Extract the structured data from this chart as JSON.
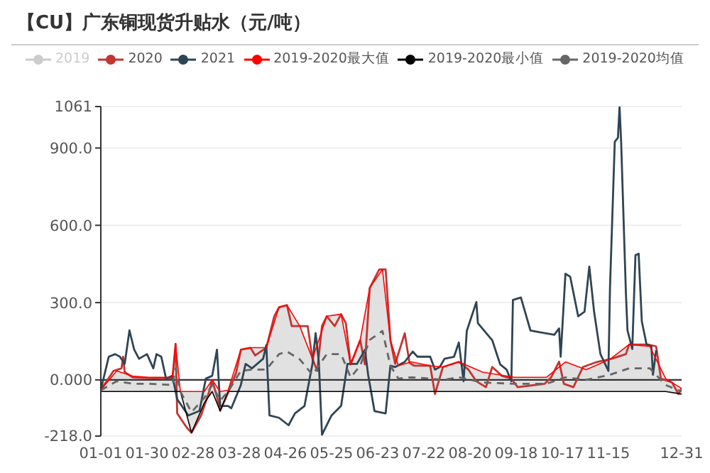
{
  "chart_data": {
    "type": "line",
    "title": "【CU】广东铜现货升贴水（元/吨）",
    "xlim": [
      "--01-01",
      "--12-31"
    ],
    "xticks": [
      {
        "value": "--01-01",
        "label": "01-01"
      },
      {
        "value": "--01-30",
        "label": "01-30"
      },
      {
        "value": "--02-28",
        "label": "02-28"
      },
      {
        "value": "--03-28",
        "label": "03-28"
      },
      {
        "value": "--04-26",
        "label": "04-26"
      },
      {
        "value": "--05-25",
        "label": "05-25"
      },
      {
        "value": "--06-23",
        "label": "06-23"
      },
      {
        "value": "--07-22",
        "label": "07-22"
      },
      {
        "value": "--08-20",
        "label": "08-20"
      },
      {
        "value": "--09-18",
        "label": "09-18"
      },
      {
        "value": "--10-17",
        "label": "10-17"
      },
      {
        "value": "--11-15",
        "label": "11-15"
      },
      {
        "value": "--12-31",
        "label": "12-31"
      }
    ],
    "ylim": [
      -218,
      1061
    ],
    "yticks": [
      {
        "value": -218,
        "label": "-218.0"
      },
      {
        "value": 0,
        "label": "0.000"
      },
      {
        "value": 300,
        "label": "300.0"
      },
      {
        "value": 600,
        "label": "600.0"
      },
      {
        "value": 900,
        "label": "900.0"
      },
      1061
    ],
    "grid": "y",
    "legend": "top",
    "marker": "none",
    "line_style": "solid",
    "ref_lines": [
      {
        "axis": "y",
        "value": 0,
        "color": "#333333"
      }
    ],
    "series": [
      {
        "name": "2019",
        "color": "#cccccc"
      },
      {
        "name": "2020",
        "color": "#c23531",
        "x": [
          "--01-01",
          "--01-09",
          "--01-14",
          "--01-15",
          "--01-16",
          "--01-21",
          "--02-08",
          "--02-15",
          "--02-17",
          "--02-18",
          "--02-24",
          "--02-27",
          "--03-04",
          "--03-09",
          "--03-11",
          "--03-14",
          "--03-16",
          "--03-21",
          "--03-26",
          "--03-29",
          "--04-04",
          "--04-07",
          "--04-14",
          "--04-19",
          "--04-22",
          "--04-27",
          "--04-30",
          "--05-10",
          "--05-13",
          "--05-16",
          "--05-19",
          "--05-22",
          "--05-27",
          "--05-31",
          "--06-03",
          "--06-06",
          "--06-12",
          "--06-15",
          "--06-18",
          "--06-24",
          "--06-28",
          "--07-01",
          "--07-04",
          "--07-10",
          "--07-13",
          "--07-16",
          "--07-26",
          "--07-29",
          "--08-03",
          "--08-13",
          "--08-19",
          "--08-24",
          "--08-30",
          "--09-03",
          "--09-09",
          "--09-15",
          "--09-19",
          "--10-06",
          "--10-10",
          "--10-15",
          "--10-18",
          "--10-24",
          "--10-30",
          "--11-08",
          "--11-17",
          "--11-26",
          "--11-28",
          "--12-10",
          "--12-15",
          "--12-18",
          "--12-25",
          "--12-29",
          "--12-31"
        ],
        "values": [
          -38,
          35,
          45,
          90,
          30,
          10,
          5,
          5,
          140,
          -130,
          -185,
          -205,
          -138,
          -48,
          0,
          -66,
          -120,
          -50,
          27,
          117,
          125,
          95,
          125,
          247,
          282,
          290,
          209,
          209,
          82,
          35,
          209,
          247,
          209,
          255,
          220,
          60,
          154,
          60,
          357,
          429,
          429,
          154,
          62,
          181,
          66,
          55,
          55,
          -55,
          50,
          70,
          40,
          -5,
          -28,
          50,
          16,
          5,
          -28,
          -15,
          10,
          71,
          -15,
          -28,
          50,
          70,
          82,
          100,
          137,
          137,
          130,
          5,
          -10,
          -55,
          -33
        ]
      },
      {
        "name": "2021",
        "color": "#2f4554",
        "x": [
          "--01-01",
          "--01-06",
          "--01-10",
          "--01-13",
          "--01-16",
          "--01-19",
          "--01-22",
          "--01-25",
          "--01-30",
          "--02-03",
          "--02-05",
          "--02-08",
          "--02-11",
          "--02-15",
          "--02-18",
          "--02-23",
          "--02-25",
          "--03-03",
          "--03-07",
          "--03-11",
          "--03-14",
          "--03-16",
          "--03-21",
          "--03-23",
          "--03-29",
          "--04-01",
          "--04-05",
          "--04-12",
          "--04-14",
          "--04-16",
          "--04-22",
          "--04-28",
          "--05-02",
          "--05-08",
          "--05-13",
          "--05-15",
          "--05-17",
          "--05-19",
          "--05-25",
          "--05-31",
          "--06-04",
          "--06-10",
          "--06-15",
          "--06-17",
          "--06-21",
          "--06-28",
          "--07-01",
          "--07-04",
          "--07-10",
          "--07-15",
          "--07-18",
          "--07-26",
          "--07-29",
          "--08-01",
          "--08-04",
          "--08-10",
          "--08-13",
          "--08-16",
          "--08-18",
          "--08-24",
          "--08-25",
          "--09-03",
          "--09-08",
          "--09-12",
          "--09-15",
          "--09-16",
          "--09-21",
          "--09-27",
          "--10-03",
          "--10-12",
          "--10-15",
          "--10-16",
          "--10-19",
          "--10-22",
          "--10-27",
          "--10-31",
          "--11-03",
          "--11-06",
          "--11-10",
          "--11-15",
          "--11-16",
          "--11-19",
          "--11-21",
          "--11-22",
          "--11-23",
          "--11-26",
          "--11-27",
          "--11-30",
          "--12-02",
          "--12-04",
          "--12-06",
          "--12-09",
          "--12-12",
          "--12-13",
          "--12-15"
        ],
        "values": [
          -38,
          90,
          100,
          90,
          62,
          192,
          117,
          82,
          100,
          45,
          100,
          90,
          5,
          16,
          -75,
          -120,
          -138,
          -120,
          5,
          16,
          117,
          -101,
          -101,
          -110,
          -20,
          62,
          45,
          82,
          135,
          -138,
          -147,
          -176,
          -130,
          -101,
          62,
          181,
          71,
          -213,
          -138,
          -101,
          62,
          62,
          117,
          20,
          -121,
          -130,
          55,
          50,
          70,
          110,
          90,
          90,
          40,
          50,
          82,
          90,
          145,
          -5,
          190,
          302,
          220,
          154,
          60,
          40,
          -5,
          310,
          320,
          192,
          185,
          175,
          200,
          90,
          412,
          400,
          247,
          265,
          440,
          265,
          100,
          35,
          357,
          924,
          940,
          1061,
          924,
          337,
          192,
          120,
          484,
          490,
          227,
          137,
          130,
          20,
          115
        ]
      },
      {
        "name": "2019-2020最大值",
        "color": "#ff0000",
        "x": [
          "--01-01",
          "--01-11",
          "--01-21",
          "--01-31",
          "--02-15",
          "--02-17",
          "--02-20",
          "--02-27",
          "--03-06",
          "--03-11",
          "--03-16",
          "--03-21",
          "--03-29",
          "--04-05",
          "--04-14",
          "--04-22",
          "--04-27",
          "--05-05",
          "--05-13",
          "--05-22",
          "--05-31",
          "--06-06",
          "--06-12",
          "--06-18",
          "--06-26",
          "--07-01",
          "--07-06",
          "--07-14",
          "--07-26",
          "--08-03",
          "--08-13",
          "--08-28",
          "--09-17",
          "--10-07",
          "--10-19",
          "--11-01",
          "--11-16",
          "--11-28",
          "--12-11",
          "--12-21",
          "--12-31"
        ],
        "values": [
          -38,
          35,
          15,
          10,
          10,
          140,
          -45,
          -45,
          -45,
          0,
          -45,
          -40,
          117,
          125,
          125,
          282,
          290,
          209,
          82,
          247,
          255,
          60,
          154,
          357,
          429,
          154,
          55,
          70,
          55,
          50,
          70,
          30,
          10,
          10,
          70,
          40,
          80,
          137,
          130,
          5,
          -33
        ]
      },
      {
        "name": "2019-2020最小值",
        "color": "#000000",
        "x": [
          "--01-01",
          "--01-11",
          "--01-21",
          "--01-31",
          "--02-15",
          "--02-17",
          "--02-20",
          "--02-27",
          "--03-06",
          "--03-11",
          "--03-16",
          "--03-21",
          "--03-29",
          "--04-05",
          "--04-14",
          "--04-22",
          "--04-27",
          "--05-05",
          "--05-13",
          "--05-22",
          "--05-31",
          "--06-06",
          "--06-12",
          "--06-18",
          "--06-26",
          "--07-01",
          "--07-06",
          "--07-14",
          "--07-26",
          "--08-03",
          "--08-13",
          "--08-28",
          "--09-17",
          "--10-07",
          "--10-19",
          "--11-01",
          "--11-16",
          "--11-28",
          "--12-11",
          "--12-21",
          "--12-31"
        ],
        "values": [
          -45,
          -45,
          -45,
          -45,
          -45,
          -45,
          -45,
          -205,
          -90,
          -45,
          -120,
          -45,
          -45,
          -45,
          -45,
          -45,
          -45,
          -45,
          -45,
          -45,
          -45,
          -45,
          -45,
          -45,
          -45,
          -45,
          -45,
          -45,
          -45,
          -45,
          -45,
          -45,
          -45,
          -45,
          -45,
          -45,
          -45,
          -45,
          -45,
          -45,
          -55
        ]
      },
      {
        "name": "2019-2020均值",
        "color": "#666666",
        "line_style": "dashed",
        "upper": [
          -38,
          35,
          15,
          10,
          10,
          140,
          -45,
          -45,
          -45,
          0,
          -45,
          -40,
          117,
          125,
          125,
          282,
          290,
          209,
          82,
          247,
          255,
          60,
          154,
          357,
          429,
          154,
          55,
          70,
          55,
          50,
          70,
          30,
          10,
          10,
          70,
          40,
          80,
          137,
          130,
          5,
          -33
        ],
        "lower": [
          -45,
          -45,
          -45,
          -45,
          -45,
          -45,
          -45,
          -205,
          -90,
          -45,
          -120,
          -45,
          -45,
          -45,
          -45,
          -45,
          -45,
          -45,
          -45,
          -45,
          -45,
          -45,
          -45,
          -45,
          -45,
          -45,
          -45,
          -45,
          -45,
          -45,
          -45,
          -45,
          -45,
          -45,
          -45,
          -45,
          -45,
          -45,
          -45,
          -45,
          -55
        ],
        "x": [
          "--01-01",
          "--01-11",
          "--01-21",
          "--01-31",
          "--02-15",
          "--02-17",
          "--02-20",
          "--02-27",
          "--03-06",
          "--03-11",
          "--03-16",
          "--03-21",
          "--03-29",
          "--04-05",
          "--04-14",
          "--04-22",
          "--04-27",
          "--05-05",
          "--05-13",
          "--05-22",
          "--05-31",
          "--06-06",
          "--06-12",
          "--06-18",
          "--06-26",
          "--07-01",
          "--07-06",
          "--07-14",
          "--07-26",
          "--08-03",
          "--08-13",
          "--08-28",
          "--09-17",
          "--10-07",
          "--10-19",
          "--11-01",
          "--11-16",
          "--11-28",
          "--12-11",
          "--12-21",
          "--12-31"
        ],
        "values": [
          -40,
          -5,
          -15,
          -15,
          -20,
          45,
          -45,
          -125,
          -70,
          -20,
          -80,
          -45,
          35,
          40,
          40,
          100,
          110,
          80,
          20,
          100,
          100,
          10,
          55,
          155,
          190,
          55,
          5,
          10,
          5,
          0,
          10,
          -10,
          -15,
          -15,
          10,
          0,
          20,
          45,
          45,
          -20,
          -45
        ]
      }
    ]
  }
}
